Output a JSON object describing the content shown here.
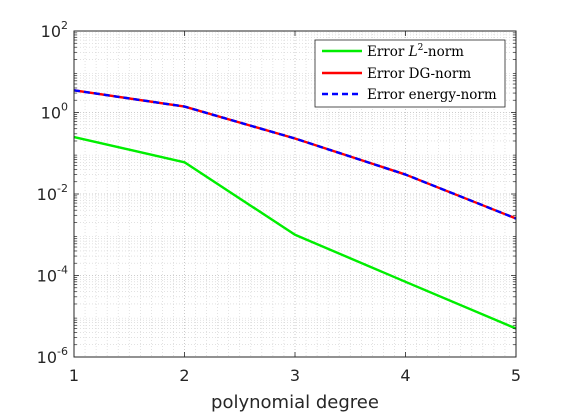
{
  "chart_data": {
    "type": "line",
    "title": "",
    "xlabel": "polynomial degree",
    "ylabel": "",
    "yscale": "log",
    "xlim": [
      1,
      5
    ],
    "ylim": [
      1e-06,
      100
    ],
    "grid": true,
    "minor_grid": true,
    "legend_position": "top-right",
    "x": [
      1,
      2,
      3,
      4,
      5
    ],
    "x_tick_labels": [
      "1",
      "2",
      "3",
      "4",
      "5"
    ],
    "y_ticks": [
      {
        "base": "10",
        "exp": "-6",
        "value": 1e-06
      },
      {
        "base": "10",
        "exp": "-4",
        "value": 0.0001
      },
      {
        "base": "10",
        "exp": "-2",
        "value": 0.01
      },
      {
        "base": "10",
        "exp": "0",
        "value": 1
      },
      {
        "base": "10",
        "exp": "2",
        "value": 100
      }
    ],
    "series": [
      {
        "name_prefix": "Error ",
        "name_math": "L",
        "name_sup": "2",
        "name_suffix": "-norm",
        "color": "#00ee00",
        "style": "solid",
        "values": [
          0.25,
          0.06,
          0.001,
          7e-05,
          5e-06
        ]
      },
      {
        "name": "Error DG-norm",
        "color": "#ff0000",
        "style": "solid",
        "values": [
          3.5,
          1.4,
          0.23,
          0.03,
          0.0025
        ]
      },
      {
        "name": "Error energy-norm",
        "color": "#0000ff",
        "style": "dashed",
        "values": [
          3.5,
          1.4,
          0.23,
          0.03,
          0.0025
        ]
      }
    ]
  }
}
